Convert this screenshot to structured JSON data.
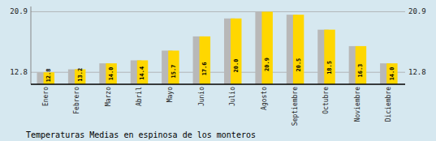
{
  "chart_data": {
    "type": "bar",
    "title": "Temperaturas Medias en espinosa de los monteros",
    "categories": [
      "Enero",
      "Febrero",
      "Marzo",
      "Abril",
      "Mayo",
      "Junio",
      "Julio",
      "Agosto",
      "Septiembre",
      "Octubre",
      "Noviembre",
      "Diciembre"
    ],
    "values": [
      12.8,
      13.2,
      14.0,
      14.4,
      15.7,
      17.6,
      20.0,
      20.9,
      20.5,
      18.5,
      16.3,
      14.0
    ],
    "value_labels": [
      "12.8",
      "13.2",
      "14.0",
      "14.4",
      "15.7",
      "17.6",
      "20.0",
      "20.9",
      "20.5",
      "18.5",
      "16.3",
      "14.0"
    ],
    "color": "#FFD700",
    "ylim": [
      11.2,
      21.6
    ],
    "yticks": [
      12.8,
      20.9
    ],
    "grid": true,
    "data_labels": true
  }
}
